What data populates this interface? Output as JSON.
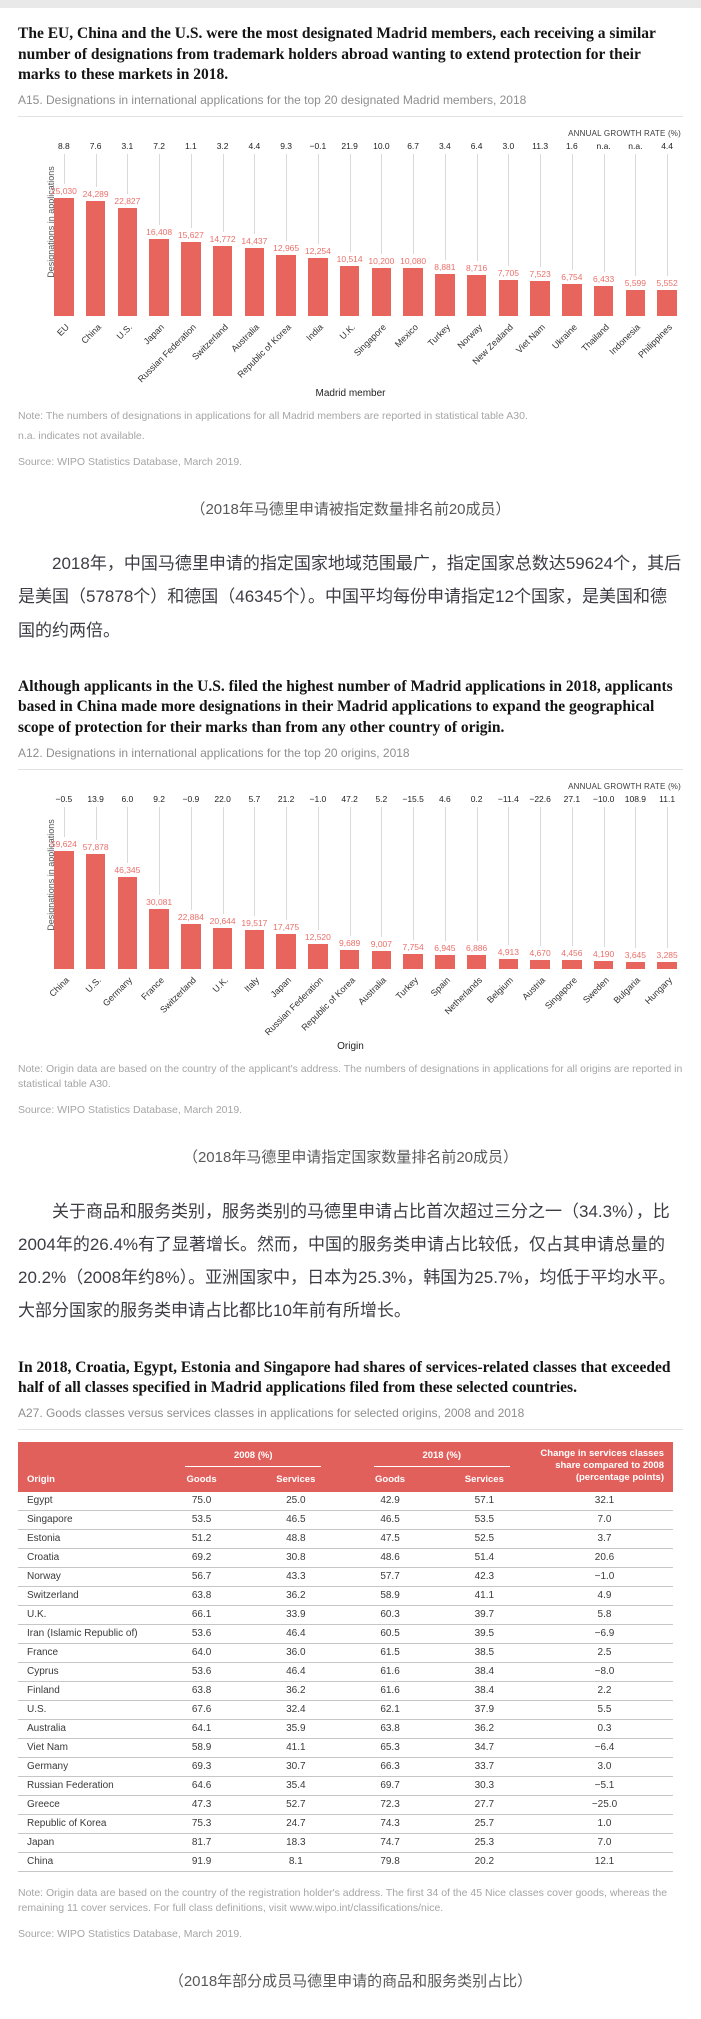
{
  "sections": {
    "s1": {
      "heading": "The EU, China and the U.S. were the most designated Madrid members, each receiving a similar number of designations from trademark holders abroad wanting to extend protection for their marks to these markets in 2018.",
      "figure_label": "A15. Designations in international applications for the top 20 designated Madrid members, 2018",
      "notes": [
        "Note: The numbers of designations in applications for all Madrid members are reported in statistical table A30.",
        "n.a. indicates not available."
      ],
      "source": "Source: WIPO Statistics Database, March 2019.",
      "caption": "（2018年马德里申请被指定数量排名前20成员）"
    },
    "p1": "2018年，中国马德里申请的指定国家地域范围最广，指定国家总数达59624个，其后是美国（57878个）和德国（46345个）。中国平均每份申请指定12个国家，是美国和德国的约两倍。",
    "s2": {
      "heading": "Although applicants in the U.S. filed the highest number of Madrid applications in 2018, applicants based in China made more designations in their Madrid applications to expand the geographical scope of protection for their marks than from any other country of origin.",
      "figure_label": "A12. Designations in international applications for the top 20 origins, 2018",
      "notes": [
        "Note: Origin data are based on the country of the applicant's address. The numbers of designations in applications for all origins are reported in statistical table A30."
      ],
      "source": "Source: WIPO Statistics Database, March 2019.",
      "caption": "（2018年马德里申请指定国家数量排名前20成员）"
    },
    "p2": "关于商品和服务类别，服务类别的马德里申请占比首次超过三分之一（34.3%），比2004年的26.4%有了显著增长。然而，中国的服务类申请占比较低，仅占其申请总量的20.2%（2008年约8%）。亚洲国家中，日本为25.3%，韩国为25.7%，均低于平均水平。大部分国家的服务类申请占比都比10年前有所增长。",
    "s3": {
      "heading": "In 2018, Croatia, Egypt, Estonia and Singapore had shares of services-related classes that exceeded half of all classes specified in Madrid applications filed from these selected countries.",
      "figure_label": "A27. Goods classes versus services classes in applications for selected origins, 2008 and 2018",
      "notes": [
        "Note: Origin data are based on the country of the registration holder's address. The first 34 of the 45 Nice classes cover goods, whereas the remaining 11 cover services. For full class definitions, visit www.wipo.int/classifications/nice."
      ],
      "source": "Source: WIPO Statistics Database, March 2019.",
      "caption": "（2018年部分成员马德里申请的商品和服务类别占比）"
    }
  },
  "chart_data": [
    {
      "type": "bar",
      "title": "A15. Designations in international applications for the top 20 designated Madrid members, 2018",
      "annotation": "ANNUAL GROWTH RATE (%)",
      "ylabel": "Designations in applications",
      "xlabel": "Madrid member",
      "categories": [
        "EU",
        "China",
        "U.S.",
        "Japan",
        "Russian Federation",
        "Switzerland",
        "Australia",
        "Republic of Korea",
        "India",
        "U.K.",
        "Singapore",
        "Mexico",
        "Turkey",
        "Norway",
        "New Zealand",
        "Viet Nam",
        "Ukraine",
        "Thailand",
        "Indonesia",
        "Philippines"
      ],
      "values": [
        25030,
        24289,
        22827,
        16408,
        15627,
        14772,
        14437,
        12965,
        12254,
        10514,
        10200,
        10080,
        8881,
        8716,
        7705,
        7523,
        6754,
        6433,
        5599,
        5552
      ],
      "growth": [
        "8.8",
        "7.6",
        "3.1",
        "7.2",
        "1.1",
        "3.2",
        "4.4",
        "9.3",
        "−0.1",
        "21.9",
        "10.0",
        "6.7",
        "3.4",
        "6.4",
        "3.0",
        "11.3",
        "1.6",
        "n.a.",
        "n.a.",
        "4.4"
      ],
      "ylim": [
        0,
        25030
      ],
      "grid": false,
      "bar_color": "#e8655e"
    },
    {
      "type": "bar",
      "title": "A12. Designations in international applications for the top 20 origins, 2018",
      "annotation": "ANNUAL GROWTH RATE (%)",
      "ylabel": "Designations in applications",
      "xlabel": "Origin",
      "categories": [
        "China",
        "U.S.",
        "Germany",
        "France",
        "Switzerland",
        "U.K.",
        "Italy",
        "Japan",
        "Russian Federation",
        "Republic of Korea",
        "Australia",
        "Turkey",
        "Spain",
        "Netherlands",
        "Belgium",
        "Austria",
        "Singapore",
        "Sweden",
        "Bulgaria",
        "Hungary"
      ],
      "values": [
        59624,
        57878,
        46345,
        30081,
        22884,
        20644,
        19517,
        17475,
        12520,
        9689,
        9007,
        7754,
        6945,
        6886,
        4913,
        4670,
        4456,
        4190,
        3645,
        3285
      ],
      "growth": [
        "−0.5",
        "13.9",
        "6.0",
        "9.2",
        "−0.9",
        "22.0",
        "5.7",
        "21.2",
        "−1.0",
        "47.2",
        "5.2",
        "−15.5",
        "4.6",
        "0.2",
        "−11.4",
        "−22.6",
        "27.1",
        "−10.0",
        "108.9",
        "11.1"
      ],
      "ylim": [
        0,
        59624
      ],
      "grid": false,
      "bar_color": "#e8655e"
    }
  ],
  "table": {
    "group_headers": {
      "g2008": "2008 (%)",
      "g2018": "2018 (%)"
    },
    "col_origin": "Origin",
    "col_goods": "Goods",
    "col_services": "Services",
    "col_change": "Change in services classes share compared to 2008 (percentage points)",
    "rows": [
      [
        "Egypt",
        "75.0",
        "25.0",
        "42.9",
        "57.1",
        "32.1"
      ],
      [
        "Singapore",
        "53.5",
        "46.5",
        "46.5",
        "53.5",
        "7.0"
      ],
      [
        "Estonia",
        "51.2",
        "48.8",
        "47.5",
        "52.5",
        "3.7"
      ],
      [
        "Croatia",
        "69.2",
        "30.8",
        "48.6",
        "51.4",
        "20.6"
      ],
      [
        "Norway",
        "56.7",
        "43.3",
        "57.7",
        "42.3",
        "−1.0"
      ],
      [
        "Switzerland",
        "63.8",
        "36.2",
        "58.9",
        "41.1",
        "4.9"
      ],
      [
        "U.K.",
        "66.1",
        "33.9",
        "60.3",
        "39.7",
        "5.8"
      ],
      [
        "Iran (Islamic Republic of)",
        "53.6",
        "46.4",
        "60.5",
        "39.5",
        "−6.9"
      ],
      [
        "France",
        "64.0",
        "36.0",
        "61.5",
        "38.5",
        "2.5"
      ],
      [
        "Cyprus",
        "53.6",
        "46.4",
        "61.6",
        "38.4",
        "−8.0"
      ],
      [
        "Finland",
        "63.8",
        "36.2",
        "61.6",
        "38.4",
        "2.2"
      ],
      [
        "U.S.",
        "67.6",
        "32.4",
        "62.1",
        "37.9",
        "5.5"
      ],
      [
        "Australia",
        "64.1",
        "35.9",
        "63.8",
        "36.2",
        "0.3"
      ],
      [
        "Viet Nam",
        "58.9",
        "41.1",
        "65.3",
        "34.7",
        "−6.4"
      ],
      [
        "Germany",
        "69.3",
        "30.7",
        "66.3",
        "33.7",
        "3.0"
      ],
      [
        "Russian Federation",
        "64.6",
        "35.4",
        "69.7",
        "30.3",
        "−5.1"
      ],
      [
        "Greece",
        "47.3",
        "52.7",
        "72.3",
        "27.7",
        "−25.0"
      ],
      [
        "Republic of Korea",
        "75.3",
        "24.7",
        "74.3",
        "25.7",
        "1.0"
      ],
      [
        "Japan",
        "81.7",
        "18.3",
        "74.7",
        "25.3",
        "7.0"
      ],
      [
        "China",
        "91.9",
        "8.1",
        "79.8",
        "20.2",
        "12.1"
      ]
    ]
  }
}
